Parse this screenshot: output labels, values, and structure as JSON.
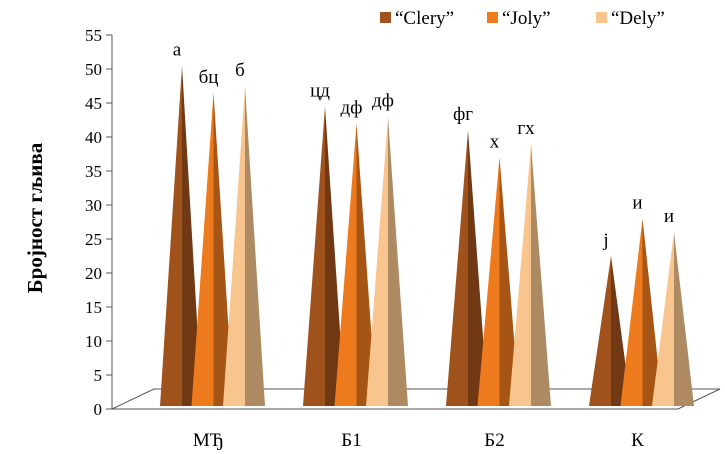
{
  "chart_data": {
    "type": "bar",
    "title": "",
    "xlabel": "",
    "ylabel": "Бројност гљива",
    "ylim": [
      0,
      55
    ],
    "yticks": [
      0,
      5,
      10,
      15,
      20,
      25,
      30,
      35,
      40,
      45,
      50,
      55
    ],
    "grid": false,
    "legend_position": "top-right",
    "categories": [
      "МЂ",
      "Б1",
      "Б2",
      "К"
    ],
    "series": [
      {
        "name": "“Clery”",
        "color": "#A0521C",
        "values": [
          50.5,
          44.5,
          41,
          22.5
        ],
        "labels": [
          "а",
          "цд",
          "фг",
          "ј"
        ]
      },
      {
        "name": "“Joly”",
        "color": "#EE7A1E",
        "values": [
          46.5,
          42,
          37,
          28
        ],
        "labels": [
          "бц",
          "дф",
          "х",
          "и"
        ]
      },
      {
        "name": "“Dely”",
        "color": "#F9C58E",
        "values": [
          47.5,
          43,
          39,
          26
        ],
        "labels": [
          "б",
          "дф",
          "гх",
          "и"
        ]
      }
    ]
  }
}
